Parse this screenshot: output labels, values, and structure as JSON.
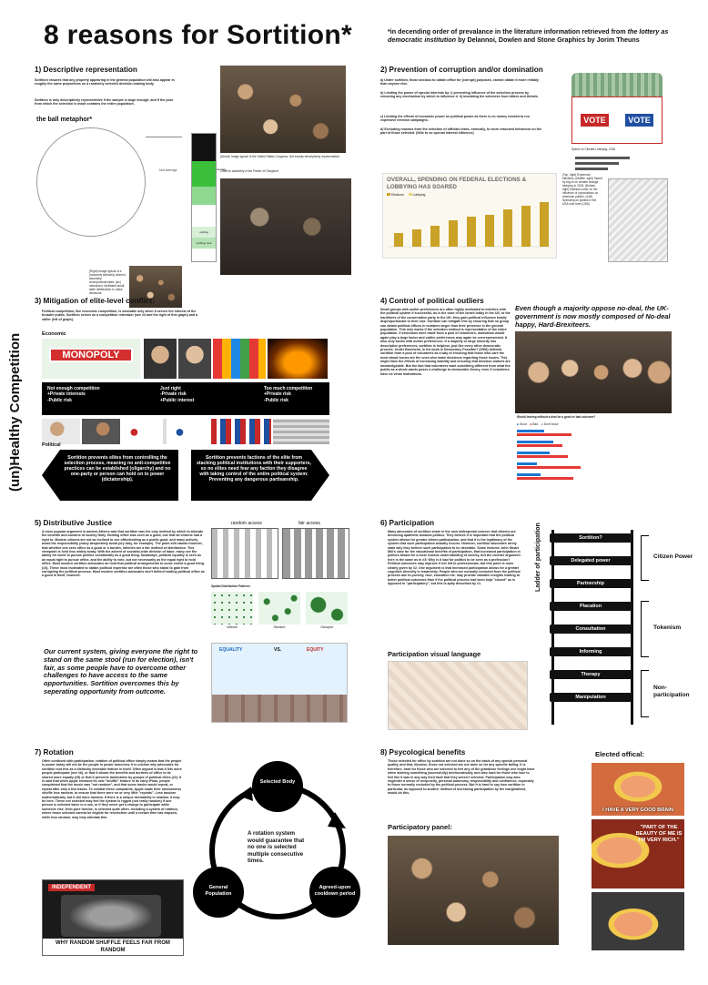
{
  "header": {
    "title": "8 reasons for Sortition*",
    "subtitle_prefix": "*in decending order of prevalance in the literature information retrieved from ",
    "subtitle_italic": "the lottery as democratic institution",
    "subtitle_suffix": " by Delannoi, Dowlen and Stone Graphics by Jorim Theuns"
  },
  "s1": {
    "title": "1) Descriptive representation",
    "text1": "Sortition ensures that any property appearing in the general population will also appear in roughly the same proportions on a randomly selected decision-making body.",
    "text2": "Sortition is only descriptively representitive if the sample is large enough; and if the pool from which the selection is made contains the entire population.",
    "ball_title": "the ball metaphor*",
    "bar_label": "Not average",
    "stack_labels": [
      "average",
      "",
      "nothing",
      "nothing, less"
    ],
    "caption_crowd": "(Right) Image typical of a (randomly selected) citizen's assembly: Anonymized/cutted: (sic) networked, facilitated small table deliberation to make decisions.",
    "caption_congress": "(Above) Image typical of the United States Congress. Not exactly descriptively representative",
    "caption_assembly": "Citizen's assembly of the Parish of Chinglond"
  },
  "s2": {
    "title": "2) Prevention of corruption and/or domination",
    "text_a": "a) Under sortition, those anxious to obtain office for [corrupt] purposes, cannot obtain it more reliably than anyone else.",
    "text_b": "b) Limiting the power of special interests by: i) preventing influence of the selection process by removing any mechanism by which to influence it. ii) insulating the selectees from bribes and threats.",
    "text_c": "c) Limiting the effects of economic power on political power as there is no money needed to run expensive election campaigns.",
    "text_d": "d) Excluding reasons from the selection of officials leads, ironically, to more reasoned behaviour on the part of those selected. (little to no special interest influence)",
    "chart_title": "OVERALL, SPENDING ON FEDERAL ELECTIONS & LOBBYING HAS SOARED",
    "legend": [
      "Elections",
      "Lobbying"
    ],
    "vote_label": "VOTE",
    "caption_right": "(Top, right) Expensive elections. (Middle, right) Spend by big oil on climate change lobbying in 2018. (Bottom, right) Satirical comic on the influence of corporations on american politics. (Left) Spending on politics in the USA over time (USA)",
    "oil_chart_title": "Spend on Climate Lobbying, 2018"
  },
  "s3": {
    "title": "3) Mitigation of elite-level conflict:",
    "text": "Political competition, like economic competition, is desirable only when it serves the interest of the broader public. Sortition serves as a competition rebreaker (see #4 and the right of this graph) and a stifler (left of graph).",
    "vertical_label": "(un)Healthy Competition",
    "economic_label": "Economic",
    "political_label": "Political",
    "monopoly": "MONOPOLY",
    "bar_left": "Not enough competition\n+Private interests\n-Public risk",
    "bar_mid": "Just right\n-Private risk\n+Public interest",
    "bar_right": "Too much competition\n+Private risk\n-Public risk",
    "arrow_left": "Sortition prevents elites from controlling the selection process, meaning no anti-competitive practices can be established (oligarchy) and no one-party or person can hold on to power (dictatorship).",
    "arrow_right": "Sortition prevents factions of the elite from stacking political institutions with their supporters, so no elites need fear any faction they disagree with taking control of the entire political system: Preventing any dangerous partisanship."
  },
  "s4": {
    "title": "4) Control of political outliers",
    "text": "Small groups with outlier preferences are often highly motivated to interfere with the political system if successful, as is the case of the Israeli lobby in the US, or the hardliners of the conservative party in the UK: they gain political influence totally disproportionate to their size. Sortition can mitigate this by ensuring that no group can obtain political offices in numbers larger than their presence in the general population. This only works if the selection method is representative of the entire population. If selections were made from a pool of volunteers, motivation would again play a large factor and outlier preferences may again be overrepresented. It also only works with outlier preferences. If a majority or large minority has descriptive preferences, sortition is helpless. just like every other democratic process. Under Burnheim, in his book is Democracy Possible? (2006) defends sortition from a pool of volunteers as a way of ensuring that those who care the most about issues are the ones who make decisions regarding those issues. This might have the effects of increasing stability and ensuring that decision-makers are knowledgeable. But the fact that volunteers want something different from what the public as a whole wants poses a challenge to democratic theory, even if volunteers have no venal motivations.",
    "quote": "Even though a majority oppose no-deal, the UK-government is now mostly composed of No-deal happy, Hard-Brexiteers.",
    "chart_title": "Would leaving without a deal be a good or bad outcome?",
    "chart_legend": [
      "Good",
      "Bad",
      "Don't know"
    ]
  },
  "s5": {
    "title": "5) Distributive Justice",
    "text": "A more popular argument in ancient Athens was that sortition was the only method by which to allocate the benefits and burdens of society fairly. Holding office was seen as a good, one that all citizens had a right to. Modern citizens are not as inclined to see officeholding as a public good, and many actively avoid the responsibility (many desperately avoid jury duty, for example). The point still stands however, that whether one sees office as a good or a burden, lotteries are a fair method of distribution. This viewpoint is held less widely today. With the advent of socialist-wide division of labor, many see the ability for some to pursue politics vocationally as a good thing. Nowadays, political equality is seen as an equal right to pursue office, and the ability to vote, but not necessarily as the equal right to hold office. Most modern sortition advocates do hold that political arrangements to some extent a good thing (#3). These most motivated to obtain political expertise are often those who stand to gain from corrupting the political process. Most modern sortition advocates don't defend holding political office as a good in itself, however.",
    "chart_random": "random access",
    "chart_fair": "fair access",
    "spatial_title": "Spatial Distribution Patterns",
    "spatial_labels": [
      "Uniform",
      "Random",
      "Clumped"
    ],
    "quote": "Our current system, giving everyone the right to stand on the same stool (run for election), isn't fair, as some people have to overcome other challenges to have access to the same opportunities. Sortition overcomes this by seperating opportunity from outcome.",
    "equality": "EQUALITY",
    "vs": "VS.",
    "equity": "EQUITY"
  },
  "s6": {
    "title": "6) Participation",
    "text": "Many advocates of sortition share in the now widespread concern that citizens are becoming apathetic towards politics. They believe it is important that the political system allows for greater citizen participation, and that it is the legitimacy of the system that such participation actually occurs. However, sortition advocates rarely state why they believe such participation to be desirable. Some endorse John Stuart Mill's case for the educational benefits of participation, that increased participation in politics allows for a more holistic understanding of society, but the counter argument here is the same as in #3: Why is it bad for politics to be seen as a profession? Political outcomes may improve if not left to professionals, but this point is more clearly given by #2. One argument is that increased participation allows for a greater cognitive diversity in leadership. People who are normally excluded from the political process due to poverty, race, education etc. may provide valuable insights leading to better political outcomes than if the political process had been kept \"closed\" as is opposed to \"participatory\", but this is aptly described by #1.",
    "visual_title": "Participation visual language",
    "ladder_label": "Ladder of participation",
    "rungs": [
      "Sortition?",
      "Delegated power",
      "Partnership",
      "Placation",
      "Consultation",
      "Informing",
      "Therapy",
      "Manipulation"
    ],
    "groups": [
      "Citizen Power",
      "Tokenism",
      "Non-participation"
    ]
  },
  "s7": {
    "title": "7) Rotation",
    "text": "Often confused with participation, rotation of political office simply means that the people in power today will not be the people in power tomorrow. It is unclear why advocates for sortition tout this as a distinctly desirable feature in itself. Often argued is that it lets more people participate (see #6), or that it allows the benefits and burdens of office to be shared more equally (#5) or that it prevents domination by groups of political elites (#2). It is said that when Apple released its new \"shuffle\" feature in its early iPods, people complained that the music was \"not random\", and that some tracks would repeat, or repeat after only a few tracks. To combat these complaints, Apple made their randomness shuffle less random, to ensure that there were no or very little \"repeats\". Less random mathematically, but it did more random. If there is a unique desirability in rotation, it may be here. These not selected may feel the system is rigged (not really random) if one person is selected twice in a row, or if they never get a change to participate while someone else, from pure fortune, is selected quite often. Including a system of rotation, where those selected cannot be eligible for reselection until a certain time has elapsed, while less random, may help alleviate this.",
    "independent": "INDEPENDENT",
    "headline": "WHY RANDOM SHUFFLE FEELS FAR FROM RANDOM",
    "node_top": "Selected Body",
    "node_left": "General Population",
    "node_right": "Agreed-upon cooldown period",
    "center_text": "A rotation system would guarantee that no one is selected multiple consecutive times.",
    "arrow_top_right": "After a designated time",
    "arrow_bottom": "Eligible for re-selection",
    "arrow_left": "Random selection"
  },
  "s8": {
    "title": "8) Psycological benefits",
    "text": "Those selected for office by sortition are not done so on the basis of any special personal quality, and that, likewise, those not selected are not done so for any specific failing. It is therefore, hard for those who are selected to feel any of the grandiose feelings one might have when winning something (sucessfully) meritocratically, and also hard for those who lose to feel like it was in any way their fault that they weren't selected. Participation may also engender a sense of reciprocity, personal autonomy, responsibility and confidence, especially to those normally excluded by the political process. But it is hard to say how sortition in particular, as opposed to another method of increasing participation by the marginalised, would do this.",
    "elected_label": "Elected offical:",
    "panel_label": "Participatory panel:",
    "meme1": "I HAVE A VERY GOOD BRAIN",
    "meme2": "\"PART OF THE BEAUTY OF ME IS I'M VERY RICH.\""
  },
  "colors": {
    "accent_green": "#3bbf3b",
    "vote_red": "#c62828",
    "chart_gold": "#c9a227",
    "black": "#000000"
  }
}
